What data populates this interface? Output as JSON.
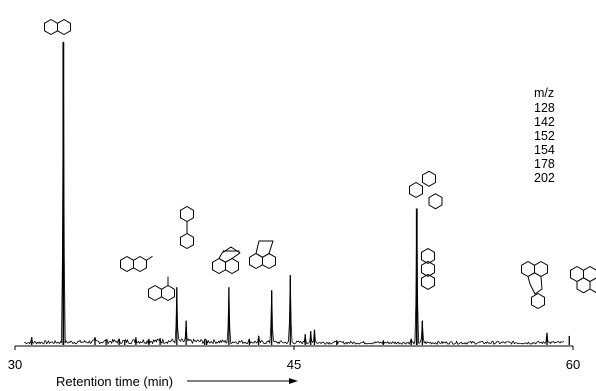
{
  "chart_data": {
    "type": "line",
    "title": "",
    "xlabel": "Retention time (min)",
    "ylabel": "",
    "xlim": [
      30,
      60
    ],
    "x_ticks": [
      "30",
      "45",
      "60"
    ],
    "grid": false,
    "legend": {
      "title": "m/z",
      "entries": [
        "128",
        "142",
        "152",
        "154",
        "178",
        "202"
      ],
      "placement": "top-right"
    },
    "peaks": [
      {
        "x": 32.6,
        "y": 100,
        "structure": "naphthalene"
      },
      {
        "x": 38.7,
        "y": 19,
        "structure": "2-methylnaphthalene"
      },
      {
        "x": 39.2,
        "y": 8,
        "structure": "1-methylnaphthalene"
      },
      {
        "x": 41.5,
        "y": 19,
        "structure": "biphenyl"
      },
      {
        "x": 43.8,
        "y": 18,
        "structure": "acenaphthylene"
      },
      {
        "x": 44.8,
        "y": 23,
        "structure": "acenaphthene"
      },
      {
        "x": 51.6,
        "y": 45,
        "structure": "phenanthrene"
      },
      {
        "x": 51.9,
        "y": 8,
        "structure": "anthracene"
      },
      {
        "x": 58.6,
        "y": 4,
        "structure": "fluoranthene"
      },
      {
        "x": 59.8,
        "y": 3,
        "structure": "pyrene"
      }
    ],
    "minor_peaks": [
      {
        "x": 30.9,
        "y": 2.5
      },
      {
        "x": 34.3,
        "y": 2.5
      },
      {
        "x": 34.9,
        "y": 1.8
      },
      {
        "x": 35.6,
        "y": 2
      },
      {
        "x": 35.9,
        "y": 1.5
      },
      {
        "x": 36.5,
        "y": 2.5
      },
      {
        "x": 37.2,
        "y": 2
      },
      {
        "x": 37.8,
        "y": 2.2
      },
      {
        "x": 40.2,
        "y": 1.8
      },
      {
        "x": 40.3,
        "y": 1.5
      },
      {
        "x": 42.6,
        "y": 2
      },
      {
        "x": 43.1,
        "y": 3
      },
      {
        "x": 45.6,
        "y": 3.5
      },
      {
        "x": 45.9,
        "y": 4.5
      },
      {
        "x": 46.1,
        "y": 5
      },
      {
        "x": 47.3,
        "y": 1.5
      },
      {
        "x": 49.8,
        "y": 1.5
      },
      {
        "x": 51.3,
        "y": 2
      }
    ]
  }
}
